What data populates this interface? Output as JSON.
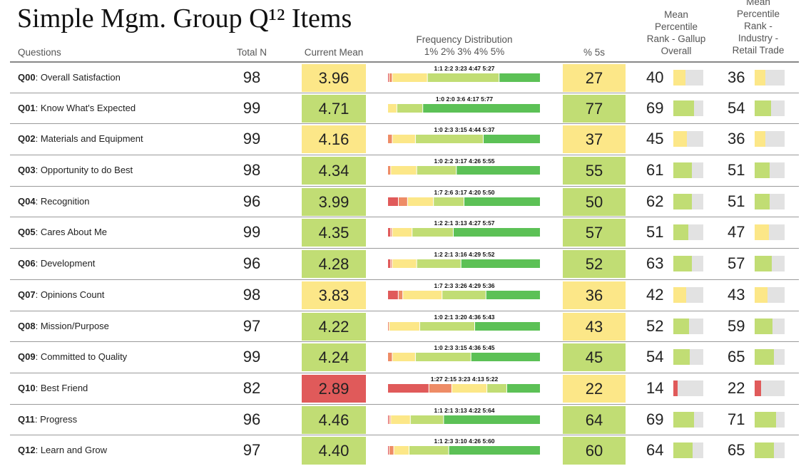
{
  "title": "Simple Mgm. Group Q¹² Items",
  "headers": {
    "questions": "Questions",
    "total_n": "Total N",
    "current_mean": "Current Mean",
    "freq_line1": "Frequency Distribution",
    "freq_line2": "1% 2% 3% 4% 5%",
    "pct5s": "% 5s",
    "gallup_l1": "Mean",
    "gallup_l2": "Percentile",
    "gallup_l3": "Rank - Gallup",
    "gallup_l4": "Overall",
    "industry_l1": "Mean",
    "industry_l2": "Percentile",
    "industry_l3": "Rank -",
    "industry_l4": "Industry -",
    "industry_l5": "Retail Trade"
  },
  "colors": {
    "red": "#e05a5a",
    "orange": "#ee8c66",
    "yellow": "#fce788",
    "lightgreen": "#c1dd74",
    "green": "#5cc156",
    "track": "#e2e2e2"
  },
  "chart_data": {
    "type": "table",
    "columns": [
      "Questions",
      "Total N",
      "Current Mean",
      "Frequency Distribution",
      "% 5s",
      "Mean Percentile Rank - Gallup Overall",
      "Mean Percentile Rank - Industry - Retail Trade"
    ],
    "rows": [
      {
        "code": "Q00",
        "name": "Overall Satisfaction",
        "n": "98",
        "mean": "3.96",
        "mean_color": "#fce788",
        "dist_label": "1:1 2:2 3:23 4:47 5:27",
        "dist": [
          1,
          2,
          23,
          47,
          27
        ],
        "pct5": "27",
        "pct5_color": "#fce788",
        "gallup": "40",
        "gallup_val": 40,
        "gallup_color": "#fce788",
        "industry": "36",
        "industry_val": 36,
        "industry_color": "#fce788"
      },
      {
        "code": "Q01",
        "name": "Know What's Expected",
        "n": "99",
        "mean": "4.71",
        "mean_color": "#c1dd74",
        "dist_label": "1:0 2:0 3:6 4:17 5:77",
        "dist": [
          0,
          0,
          6,
          17,
          77
        ],
        "pct5": "77",
        "pct5_color": "#c1dd74",
        "gallup": "69",
        "gallup_val": 69,
        "gallup_color": "#c1dd74",
        "industry": "54",
        "industry_val": 54,
        "industry_color": "#c1dd74"
      },
      {
        "code": "Q02",
        "name": "Materials and Equipment",
        "n": "99",
        "mean": "4.16",
        "mean_color": "#fce788",
        "dist_label": "1:0 2:3 3:15 4:44 5:37",
        "dist": [
          0,
          3,
          15,
          44,
          37
        ],
        "pct5": "37",
        "pct5_color": "#fce788",
        "gallup": "45",
        "gallup_val": 45,
        "gallup_color": "#fce788",
        "industry": "36",
        "industry_val": 36,
        "industry_color": "#fce788"
      },
      {
        "code": "Q03",
        "name": "Opportunity to do Best",
        "n": "98",
        "mean": "4.34",
        "mean_color": "#c1dd74",
        "dist_label": "1:0 2:2 3:17 4:26 5:55",
        "dist": [
          0,
          2,
          17,
          26,
          55
        ],
        "pct5": "55",
        "pct5_color": "#c1dd74",
        "gallup": "61",
        "gallup_val": 61,
        "gallup_color": "#c1dd74",
        "industry": "51",
        "industry_val": 51,
        "industry_color": "#c1dd74"
      },
      {
        "code": "Q04",
        "name": "Recognition",
        "n": "96",
        "mean": "3.99",
        "mean_color": "#c1dd74",
        "dist_label": "1:7 2:6 3:17 4:20 5:50",
        "dist": [
          7,
          6,
          17,
          20,
          50
        ],
        "pct5": "50",
        "pct5_color": "#c1dd74",
        "gallup": "62",
        "gallup_val": 62,
        "gallup_color": "#c1dd74",
        "industry": "51",
        "industry_val": 51,
        "industry_color": "#c1dd74"
      },
      {
        "code": "Q05",
        "name": "Cares About Me",
        "n": "99",
        "mean": "4.35",
        "mean_color": "#c1dd74",
        "dist_label": "1:2 2:1 3:13 4:27 5:57",
        "dist": [
          2,
          1,
          13,
          27,
          57
        ],
        "pct5": "57",
        "pct5_color": "#c1dd74",
        "gallup": "51",
        "gallup_val": 51,
        "gallup_color": "#c1dd74",
        "industry": "47",
        "industry_val": 47,
        "industry_color": "#fce788"
      },
      {
        "code": "Q06",
        "name": "Development",
        "n": "96",
        "mean": "4.28",
        "mean_color": "#c1dd74",
        "dist_label": "1:2 2:1 3:16 4:29 5:52",
        "dist": [
          2,
          1,
          16,
          29,
          52
        ],
        "pct5": "52",
        "pct5_color": "#c1dd74",
        "gallup": "63",
        "gallup_val": 63,
        "gallup_color": "#c1dd74",
        "industry": "57",
        "industry_val": 57,
        "industry_color": "#c1dd74"
      },
      {
        "code": "Q07",
        "name": "Opinions Count",
        "n": "98",
        "mean": "3.83",
        "mean_color": "#fce788",
        "dist_label": "1:7 2:3 3:26 4:29 5:36",
        "dist": [
          7,
          3,
          26,
          29,
          36
        ],
        "pct5": "36",
        "pct5_color": "#fce788",
        "gallup": "42",
        "gallup_val": 42,
        "gallup_color": "#fce788",
        "industry": "43",
        "industry_val": 43,
        "industry_color": "#fce788"
      },
      {
        "code": "Q08",
        "name": "Mission/Purpose",
        "n": "97",
        "mean": "4.22",
        "mean_color": "#c1dd74",
        "dist_label": "1:0 2:1 3:20 4:36 5:43",
        "dist": [
          0,
          1,
          20,
          36,
          43
        ],
        "pct5": "43",
        "pct5_color": "#fce788",
        "gallup": "52",
        "gallup_val": 52,
        "gallup_color": "#c1dd74",
        "industry": "59",
        "industry_val": 59,
        "industry_color": "#c1dd74"
      },
      {
        "code": "Q09",
        "name": "Committed to Quality",
        "n": "99",
        "mean": "4.24",
        "mean_color": "#c1dd74",
        "dist_label": "1:0 2:3 3:15 4:36 5:45",
        "dist": [
          0,
          3,
          15,
          36,
          45
        ],
        "pct5": "45",
        "pct5_color": "#c1dd74",
        "gallup": "54",
        "gallup_val": 54,
        "gallup_color": "#c1dd74",
        "industry": "65",
        "industry_val": 65,
        "industry_color": "#c1dd74"
      },
      {
        "code": "Q10",
        "name": "Best Friend",
        "n": "82",
        "mean": "2.89",
        "mean_color": "#e05a5a",
        "dist_label": "1:27 2:15 3:23 4:13 5:22",
        "dist": [
          27,
          15,
          23,
          13,
          22
        ],
        "pct5": "22",
        "pct5_color": "#fce788",
        "gallup": "14",
        "gallup_val": 14,
        "gallup_color": "#e05a5a",
        "industry": "22",
        "industry_val": 22,
        "industry_color": "#e05a5a"
      },
      {
        "code": "Q11",
        "name": "Progress",
        "n": "96",
        "mean": "4.46",
        "mean_color": "#c1dd74",
        "dist_label": "1:1 2:1 3:13 4:22 5:64",
        "dist": [
          1,
          1,
          13,
          22,
          64
        ],
        "pct5": "64",
        "pct5_color": "#c1dd74",
        "gallup": "69",
        "gallup_val": 69,
        "gallup_color": "#c1dd74",
        "industry": "71",
        "industry_val": 71,
        "industry_color": "#c1dd74"
      },
      {
        "code": "Q12",
        "name": "Learn and Grow",
        "n": "97",
        "mean": "4.40",
        "mean_color": "#c1dd74",
        "dist_label": "1:1 2:3 3:10 4:26 5:60",
        "dist": [
          1,
          3,
          10,
          26,
          60
        ],
        "pct5": "60",
        "pct5_color": "#c1dd74",
        "gallup": "64",
        "gallup_val": 64,
        "gallup_color": "#c1dd74",
        "industry": "65",
        "industry_val": 65,
        "industry_color": "#c1dd74"
      }
    ]
  }
}
